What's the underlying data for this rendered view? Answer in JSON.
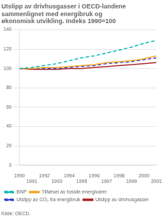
{
  "chart_data": {
    "type": "line",
    "title": "Utslipp av drivhusgasser i OECD-landene\nsammenlignet med energibruk og\nøkonomisk utvikling. Indeks 1990=100",
    "annotations": [
      "Kilde: OECD."
    ],
    "x": [
      1990,
      1991,
      1992,
      1993,
      1994,
      1995,
      1996,
      1997,
      1998,
      1999,
      2000,
      2001
    ],
    "series": [
      {
        "name": "BNP",
        "color": "#00b8b8",
        "line_style": "dashed",
        "values": [
          100,
          101,
          103,
          105,
          108,
          111,
          113,
          116,
          119,
          122,
          126,
          129
        ]
      },
      {
        "name": "Tilførsel av fossile energivarer",
        "color": "#f5a623",
        "line_style": "solid",
        "values": [
          100,
          100,
          101,
          101,
          102,
          103,
          104,
          106,
          107,
          108,
          110,
          113
        ]
      },
      {
        "name": "Utslipp av CO₂ fra energibruk",
        "color": "#3344cc",
        "line_style": "dashed",
        "values": [
          100,
          100,
          100,
          100,
          101,
          102,
          103,
          105,
          106,
          107,
          109,
          111
        ]
      },
      {
        "name": "Utslipp av drivhusgasser",
        "color": "#aa2222",
        "line_style": "solid",
        "values": [
          100,
          99,
          99,
          99,
          100,
          100,
          101,
          102,
          103,
          104,
          105,
          106
        ]
      }
    ],
    "xlim": [
      1990,
      2001
    ],
    "xticks": [
      1990,
      1991,
      1992,
      1993,
      1994,
      1995,
      1996,
      1997,
      1998,
      1999,
      2000,
      2001
    ],
    "ylim": [
      0,
      140
    ],
    "yticks": [
      0,
      20,
      40,
      60,
      80,
      100,
      120,
      140
    ],
    "grid": true,
    "legend": "bottom"
  }
}
